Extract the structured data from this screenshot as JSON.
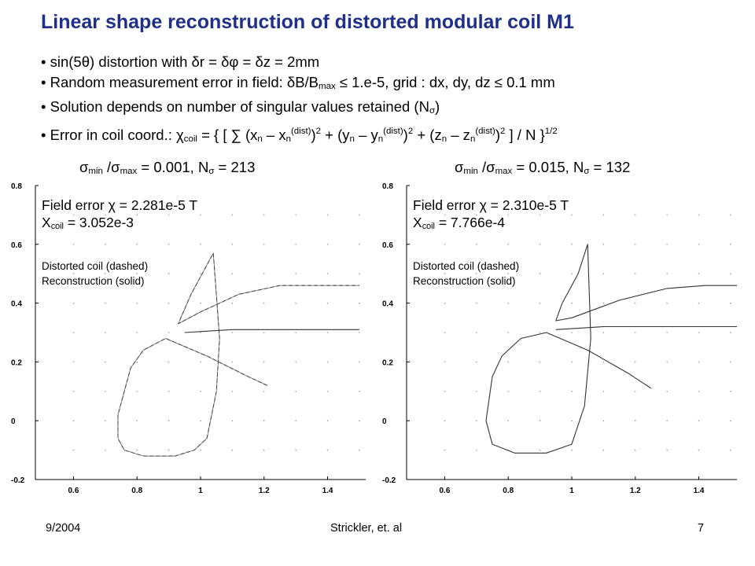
{
  "slide": {
    "title": "Linear shape reconstruction of distorted modular coil M1",
    "bullets": {
      "b1": "sin(5θ) distortion with δr = δφ = δz = 2mm",
      "b2_pre": "Random measurement error in field: δB/B",
      "b2_sub": "max",
      "b2_post": " ≤ 1.e-5, grid : dx, dy, dz ≤ 0.1 mm",
      "b3_pre": "Solution depends on number of singular values retained (N",
      "b3_sub": "σ",
      "b3_post": ")",
      "b4_pre": "Error in coil coord.: χ",
      "b4_sub": "coil",
      "b4_mid1": " = { [ ∑ (x",
      "b4_n1": "n",
      "b4_x": " – x",
      "b4_n2": "n",
      "b4_dist1": "(dist)",
      "b4_sq1": "2",
      "b4_mid2": " + (y",
      "b4_n3": "n",
      "b4_y": " – y",
      "b4_n4": "n",
      "b4_dist2": "(dist)",
      "b4_sq2": "2",
      "b4_mid3": "  + (z",
      "b4_n5": "n",
      "b4_z": " – z",
      "b4_n6": "n",
      "b4_dist3": "(dist)",
      "b4_sq3": "2",
      "b4_end": " ] / N }",
      "b4_half": "1/2"
    },
    "footer": {
      "date": "9/2004",
      "author": "Strickler, et. al",
      "page": "7"
    }
  },
  "panels": [
    {
      "caption": {
        "sigma1": "σ",
        "min": "min",
        "slash": " /σ",
        "max": "max",
        "ratio": " = 0.001, N",
        "nsub": "σ",
        "count": " = 213"
      },
      "field_error": "Field error χ = 2.281e-5 T",
      "xcoil_pre": "X",
      "xcoil_sub": "coil",
      "xcoil_val": " = 3.052e-3",
      "legend_dashed": "Distorted coil (dashed)",
      "legend_solid": "Reconstruction (solid)"
    },
    {
      "caption": {
        "sigma1": "σ",
        "min": "min",
        "slash": " /σ",
        "max": "max",
        "ratio": " = 0.015, N",
        "nsub": "σ",
        "count": " = 132"
      },
      "field_error": "Field error χ = 2.310e-5 T",
      "xcoil_pre": "X",
      "xcoil_sub": "coil",
      "xcoil_val": " = 7.766e-4",
      "legend_dashed": "Distorted coil (dashed)",
      "legend_solid": "Reconstruction (solid)"
    }
  ],
  "chart_data": [
    {
      "type": "line",
      "xlim": [
        0.48,
        1.52
      ],
      "ylim": [
        -0.2,
        0.8
      ],
      "x_ticks": [
        "0.6",
        "0.8",
        "1",
        "1.2",
        "1.4"
      ],
      "y_ticks": [
        "0.8",
        "0.6",
        "0.4",
        "0.2",
        "0",
        "-0.2"
      ],
      "grid": "dotted",
      "series": [
        {
          "style": "dashed",
          "x": [
            1.21,
            1.15,
            1.02,
            0.89,
            0.82,
            0.78,
            0.76,
            0.74,
            0.74,
            0.76,
            0.82,
            0.92,
            0.98,
            1.02,
            1.05,
            1.06,
            1.04,
            0.97,
            0.93,
            1.0,
            1.12,
            1.25,
            1.38,
            1.5
          ],
          "y": [
            0.12,
            0.15,
            0.22,
            0.28,
            0.24,
            0.18,
            0.1,
            0.02,
            -0.06,
            -0.1,
            -0.12,
            -0.12,
            -0.1,
            -0.06,
            0.1,
            0.28,
            0.57,
            0.43,
            0.33,
            0.37,
            0.43,
            0.46,
            0.46,
            0.46
          ]
        },
        {
          "style": "solid",
          "x": [
            0.95,
            1.1,
            1.3,
            1.5
          ],
          "y": [
            0.3,
            0.31,
            0.31,
            0.31
          ]
        }
      ]
    },
    {
      "type": "line",
      "xlim": [
        0.48,
        1.52
      ],
      "ylim": [
        -0.2,
        0.8
      ],
      "x_ticks": [
        "0.6",
        "0.8",
        "1",
        "1.2",
        "1.4"
      ],
      "y_ticks": [
        "0.8",
        "0.6",
        "0.4",
        "0.2",
        "0",
        "-0.2"
      ],
      "grid": "dotted",
      "series": [
        {
          "style": "solid",
          "x": [
            1.25,
            1.18,
            1.05,
            0.92,
            0.84,
            0.78,
            0.75,
            0.73,
            0.75,
            0.82,
            0.92,
            1.0,
            1.04,
            1.06,
            1.05,
            1.02,
            0.97,
            0.95,
            1.0,
            1.15,
            1.3,
            1.42,
            1.52
          ],
          "y": [
            0.11,
            0.16,
            0.24,
            0.3,
            0.28,
            0.22,
            0.15,
            0.0,
            -0.08,
            -0.11,
            -0.11,
            -0.08,
            0.05,
            0.28,
            0.6,
            0.5,
            0.4,
            0.34,
            0.35,
            0.41,
            0.45,
            0.46,
            0.46
          ]
        },
        {
          "style": "solid",
          "x": [
            0.95,
            1.1,
            1.3,
            1.52
          ],
          "y": [
            0.31,
            0.32,
            0.32,
            0.32
          ]
        }
      ]
    }
  ]
}
